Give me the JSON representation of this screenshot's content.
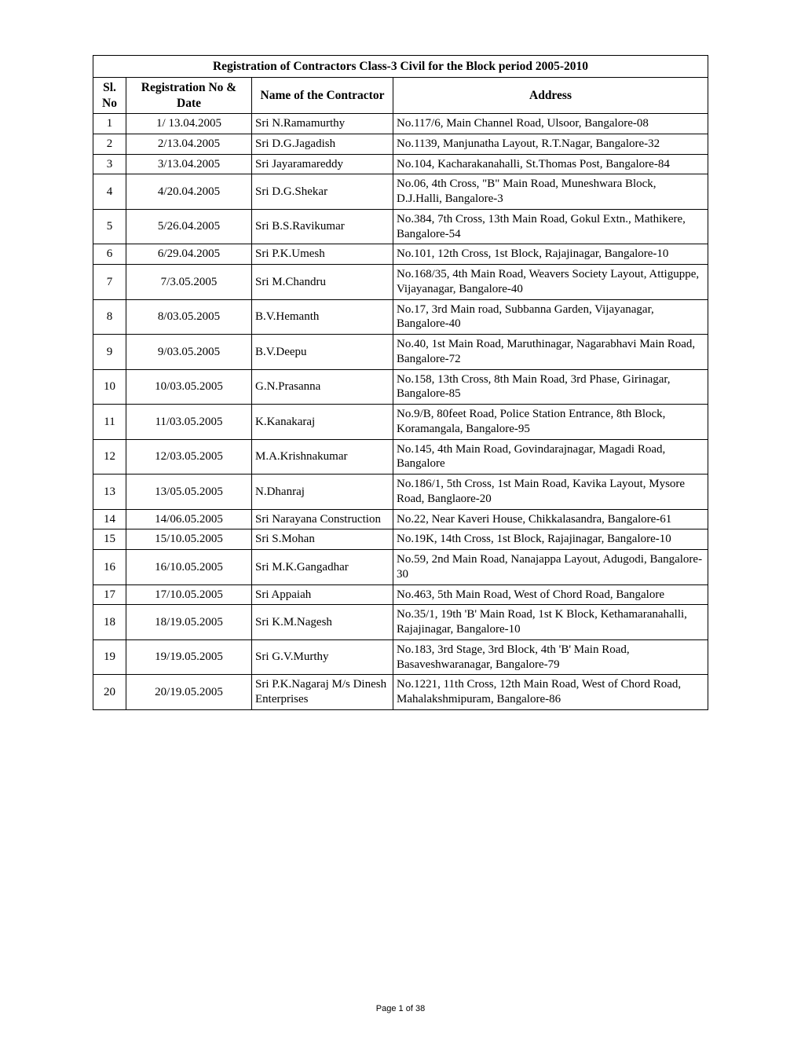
{
  "title": "Registration of Contractors Class-3 Civil for the Block period 2005-2010",
  "headers": {
    "sl": "Sl. No",
    "reg": "Registration No & Date",
    "name": "Name of the Contractor",
    "addr": "Address"
  },
  "footer": "Page 1 of 38",
  "columns": {
    "sl_width": 42,
    "reg_width": 160,
    "name_width": 180
  },
  "rows": [
    {
      "sl": "1",
      "reg": "1/ 13.04.2005",
      "name": "Sri N.Ramamurthy",
      "addr": "No.117/6, Main Channel Road, Ulsoor, Bangalore-08"
    },
    {
      "sl": "2",
      "reg": "2/13.04.2005",
      "name": "Sri D.G.Jagadish",
      "addr": "No.1139, Manjunatha Layout, R.T.Nagar, Bangalore-32"
    },
    {
      "sl": "3",
      "reg": "3/13.04.2005",
      "name": "Sri Jayaramareddy",
      "addr": "No.104, Kacharakanahalli, St.Thomas Post, Bangalore-84"
    },
    {
      "sl": "4",
      "reg": "4/20.04.2005",
      "name": "Sri D.G.Shekar",
      "addr": "No.06, 4th Cross, \"B\" Main Road, Muneshwara Block, D.J.Halli, Bangalore-3"
    },
    {
      "sl": "5",
      "reg": "5/26.04.2005",
      "name": "Sri B.S.Ravikumar",
      "addr": "No.384, 7th Cross, 13th Main Road, Gokul Extn., Mathikere, Bangalore-54"
    },
    {
      "sl": "6",
      "reg": "6/29.04.2005",
      "name": "Sri P.K.Umesh",
      "addr": "No.101, 12th Cross, 1st Block, Rajajinagar, Bangalore-10"
    },
    {
      "sl": "7",
      "reg": "7/3.05.2005",
      "name": "Sri M.Chandru",
      "addr": "No.168/35, 4th Main Road, Weavers Society Layout, Attiguppe, Vijayanagar, Bangalore-40"
    },
    {
      "sl": "8",
      "reg": "8/03.05.2005",
      "name": "B.V.Hemanth",
      "addr": "No.17, 3rd Main road, Subbanna Garden, Vijayanagar, Bangalore-40"
    },
    {
      "sl": "9",
      "reg": "9/03.05.2005",
      "name": "B.V.Deepu",
      "addr": "No.40, 1st Main Road, Maruthinagar, Nagarabhavi Main Road, Bangalore-72"
    },
    {
      "sl": "10",
      "reg": "10/03.05.2005",
      "name": "G.N.Prasanna",
      "addr": "No.158, 13th Cross, 8th Main Road, 3rd Phase, Girinagar, Bangalore-85"
    },
    {
      "sl": "11",
      "reg": "11/03.05.2005",
      "name": "K.Kanakaraj",
      "addr": "No.9/B, 80feet Road, Police Station Entrance, 8th Block, Koramangala, Bangalore-95"
    },
    {
      "sl": "12",
      "reg": "12/03.05.2005",
      "name": "M.A.Krishnakumar",
      "addr": "No.145, 4th Main Road, Govindarajnagar, Magadi Road, Bangalore"
    },
    {
      "sl": "13",
      "reg": "13/05.05.2005",
      "name": "N.Dhanraj",
      "addr": "No.186/1, 5th Cross, 1st Main Road, Kavika Layout, Mysore Road, Banglaore-20"
    },
    {
      "sl": "14",
      "reg": "14/06.05.2005",
      "name": "Sri Narayana Construction",
      "addr": "No.22, Near Kaveri House, Chikkalasandra, Bangalore-61"
    },
    {
      "sl": "15",
      "reg": "15/10.05.2005",
      "name": "Sri S.Mohan",
      "addr": "No.19K, 14th Cross, 1st Block, Rajajinagar, Bangalore-10"
    },
    {
      "sl": "16",
      "reg": "16/10.05.2005",
      "name": "Sri M.K.Gangadhar",
      "addr": "No.59, 2nd Main Road, Nanajappa Layout, Adugodi, Bangalore-30"
    },
    {
      "sl": "17",
      "reg": "17/10.05.2005",
      "name": "Sri Appaiah",
      "addr": "No.463, 5th Main Road, West of Chord Road, Bangalore"
    },
    {
      "sl": "18",
      "reg": "18/19.05.2005",
      "name": "Sri K.M.Nagesh",
      "addr": "No.35/1, 19th 'B' Main Road, 1st K Block, Kethamaranahalli, Rajajinagar, Bangalore-10"
    },
    {
      "sl": "19",
      "reg": "19/19.05.2005",
      "name": "Sri G.V.Murthy",
      "addr": "No.183, 3rd Stage, 3rd Block, 4th 'B' Main Road, Basaveshwaranagar, Bangalore-79"
    },
    {
      "sl": "20",
      "reg": "20/19.05.2005",
      "name": "Sri P.K.Nagaraj M/s Dinesh Enterprises",
      "addr": "No.1221, 11th Cross, 12th Main Road, West of Chord Road, Mahalakshmipuram, Bangalore-86"
    }
  ]
}
